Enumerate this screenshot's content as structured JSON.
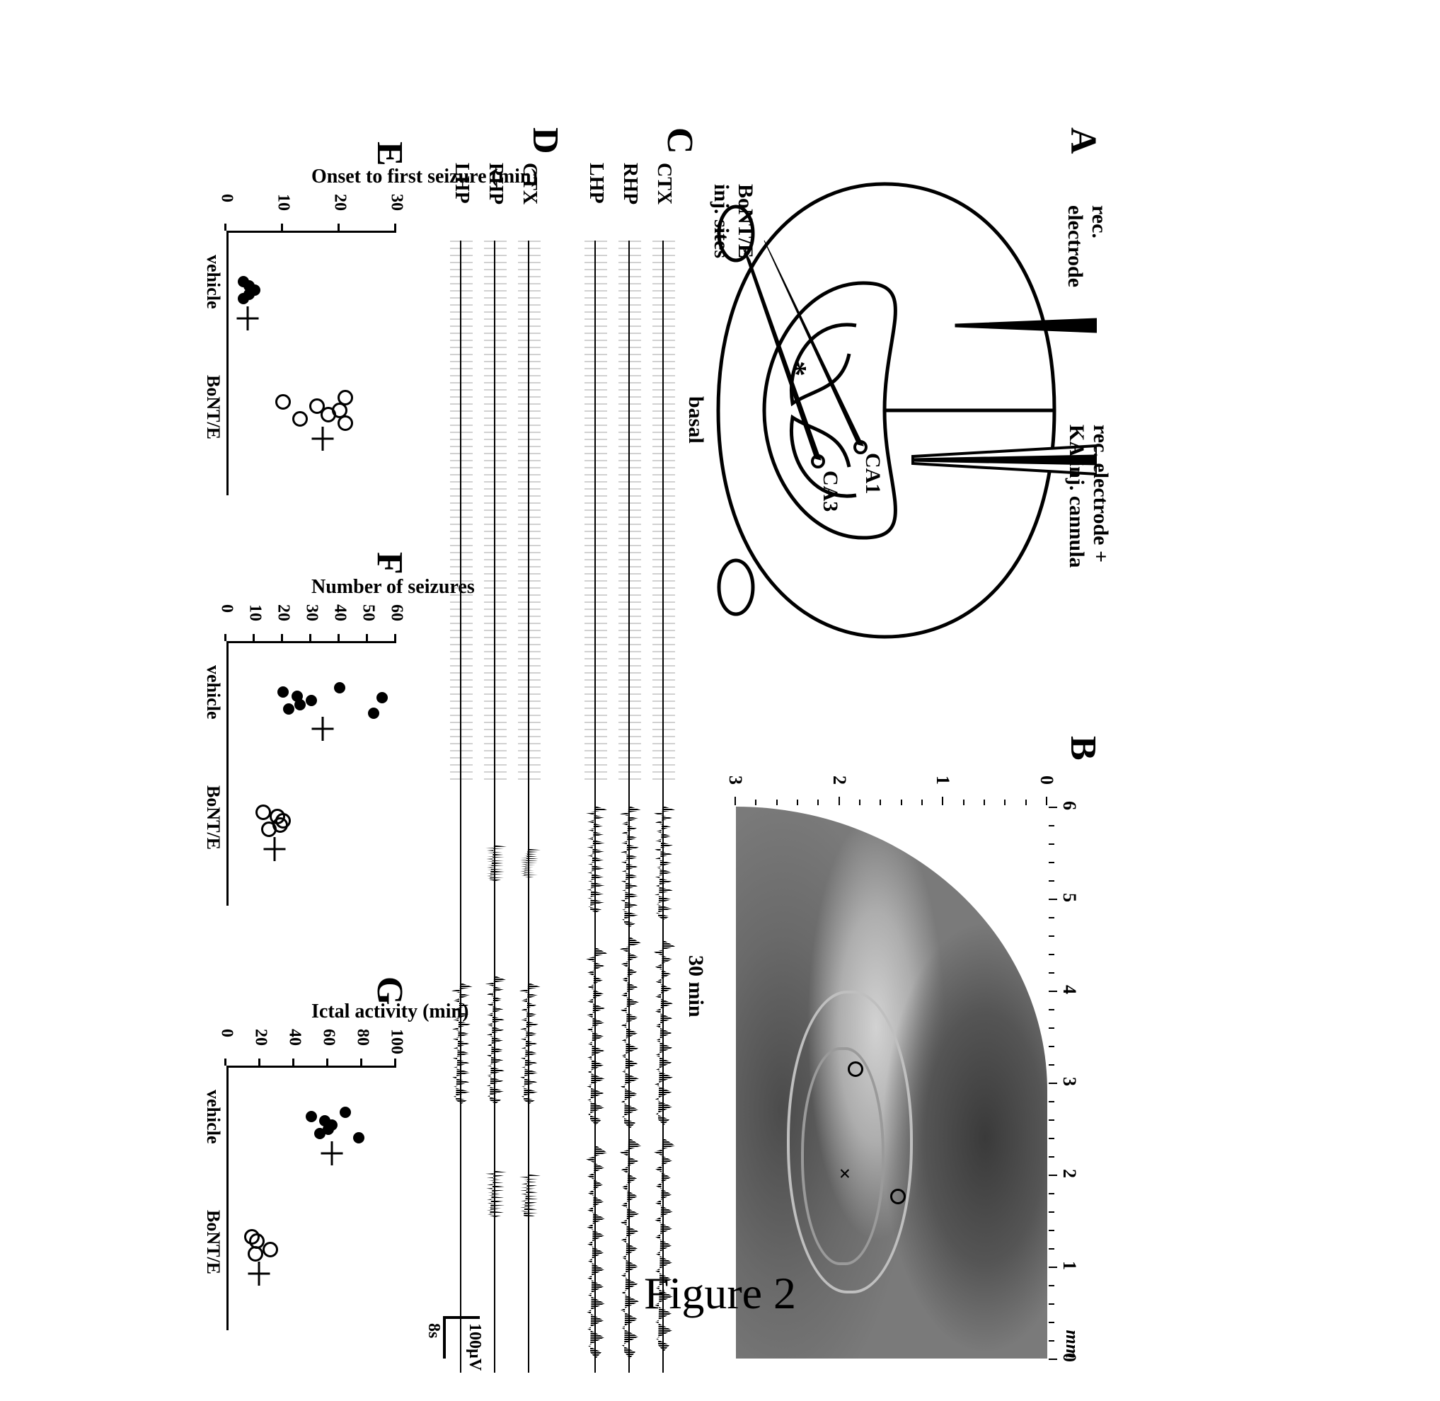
{
  "figure_label": "Figure 2",
  "panelA": {
    "label": "A",
    "annot": {
      "rec_electrode": "rec.\nelectrode",
      "rec_electrode_plus_cannula": "rec. electrode +\nKA inj. cannula",
      "bont_sites": "BoNT/E\ninj. sites",
      "ca1": "CA1",
      "ca3": "CA3",
      "asterisk": "*"
    }
  },
  "panelB": {
    "label": "B",
    "x_ticks": [
      "6",
      "5",
      "4",
      "3",
      "2",
      "1",
      "0"
    ],
    "y_ticks": [
      "0",
      "1",
      "2",
      "3"
    ],
    "unit_label": "mm"
  },
  "panelC": {
    "label": "C",
    "header_basal": "basal",
    "header_30min": "30 min",
    "channels": [
      "CTX",
      "RHP",
      "LHP"
    ]
  },
  "panelD": {
    "label": "D",
    "channels": [
      "CTX",
      "RHP",
      "LHP"
    ]
  },
  "scalebar": {
    "v_label": "100µV",
    "h_label": "8s"
  },
  "panelE": {
    "label": "E",
    "y_title": "Onset to\nfirst seizure (min)",
    "y_ticks": [
      0,
      10,
      20,
      30
    ],
    "ymax": 30,
    "groups": [
      "vehicle",
      "BoNT/E"
    ],
    "points": {
      "vehicle": {
        "style": "closed",
        "y": [
          3,
          3,
          4,
          4,
          5
        ],
        "mean": 3.8,
        "x": 170
      },
      "BoNT/E": {
        "style": "open",
        "y": [
          10,
          13,
          16,
          18,
          20,
          21,
          21
        ],
        "mean": 17,
        "x": 340
      }
    }
  },
  "panelF": {
    "label": "F",
    "y_title": "Number of seizures",
    "y_ticks": [
      0,
      10,
      20,
      30,
      40,
      50,
      60
    ],
    "ymax": 60,
    "groups": [
      "vehicle",
      "BoNT/E"
    ],
    "points": {
      "vehicle": {
        "style": "closed",
        "y": [
          20,
          22,
          25,
          26,
          30,
          40,
          52,
          55
        ],
        "mean": 34,
        "x": 170
      },
      "BoNT/E": {
        "style": "open",
        "y": [
          13,
          15,
          18,
          19,
          20
        ],
        "mean": 17,
        "x": 340
      }
    }
  },
  "panelG": {
    "label": "G",
    "y_title": "Ictal activity (min)",
    "y_ticks": [
      0,
      20,
      40,
      60,
      80,
      100
    ],
    "ymax": 100,
    "groups": [
      "vehicle",
      "BoNT/E"
    ],
    "points": {
      "vehicle": {
        "style": "closed",
        "y": [
          50,
          55,
          58,
          60,
          62,
          70,
          78
        ],
        "mean": 62,
        "x": 170
      },
      "BoNT/E": {
        "style": "open",
        "y": [
          15,
          17,
          18,
          26
        ],
        "mean": 19,
        "x": 340
      }
    }
  },
  "colors": {
    "ink": "#000000",
    "bg": "#ffffff",
    "tissue_dark": "#4a4a4a",
    "tissue_mid": "#8a8a8a",
    "tissue_light": "#c8c8c8"
  }
}
